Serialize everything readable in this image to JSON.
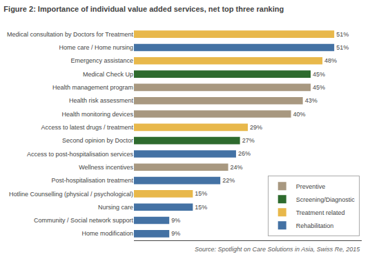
{
  "chart_data": {
    "type": "bar",
    "orientation": "horizontal",
    "title": "Figure 2: Importance of individual value added services, net top three ranking",
    "categories": [
      "Home modification",
      "Community / Social network support",
      "Nursing care",
      "Hotline Counselling (physical / psychological)",
      "Post-hospitalisation treatment",
      "Wellness incentives",
      "Access to post-hospitalisation services",
      "Second opinion by Doctor",
      "Access to latest drugs / treatment",
      "Health monitoring devices",
      "Health risk assessment",
      "Health management program",
      "Medical Check Up",
      "Emergency assistance",
      "Home care / Home nursing",
      "Medical consultation by Doctors for Treatment"
    ],
    "series": [
      {
        "name": "Preventive",
        "color": "#A89880",
        "values": [
          null,
          null,
          null,
          null,
          null,
          24,
          null,
          null,
          null,
          40,
          43,
          45,
          null,
          null,
          null,
          null
        ],
        "value_labels": [
          null,
          null,
          null,
          null,
          null,
          "24%",
          null,
          null,
          null,
          "40%",
          "43%",
          "45%",
          null,
          null,
          null,
          null
        ]
      },
      {
        "name": "Screening/Diagnostic",
        "color": "#2E6B2E",
        "values": [
          null,
          null,
          null,
          null,
          null,
          null,
          null,
          27,
          null,
          null,
          null,
          null,
          45,
          null,
          null,
          null
        ],
        "value_labels": [
          null,
          null,
          null,
          null,
          null,
          null,
          null,
          "27%",
          null,
          null,
          null,
          null,
          "45%",
          null,
          null,
          null
        ]
      },
      {
        "name": "Treatment related",
        "color": "#E8B84B",
        "values": [
          null,
          null,
          null,
          15,
          null,
          null,
          null,
          null,
          29,
          null,
          null,
          null,
          null,
          48,
          null,
          51
        ],
        "value_labels": [
          null,
          null,
          null,
          "15%",
          null,
          null,
          null,
          null,
          "29%",
          null,
          null,
          null,
          null,
          "48%",
          null,
          "51%"
        ]
      },
      {
        "name": "Rehabilitation",
        "color": "#4472A4",
        "values": [
          9,
          9,
          15,
          null,
          22,
          null,
          26,
          null,
          null,
          null,
          null,
          null,
          null,
          null,
          51,
          null
        ],
        "value_labels": [
          "9%",
          "9%",
          "15%",
          null,
          "22%",
          null,
          "26%",
          null,
          null,
          null,
          null,
          null,
          null,
          null,
          "51%",
          null
        ]
      }
    ],
    "xlim": [
      0,
      58
    ],
    "tick_labels": "y",
    "data_labels": true,
    "grid": false,
    "legend": "lower right",
    "annotations": [
      "Source: Spotlight on Care Solutions in Asia, Swiss Re, 2015"
    ]
  }
}
